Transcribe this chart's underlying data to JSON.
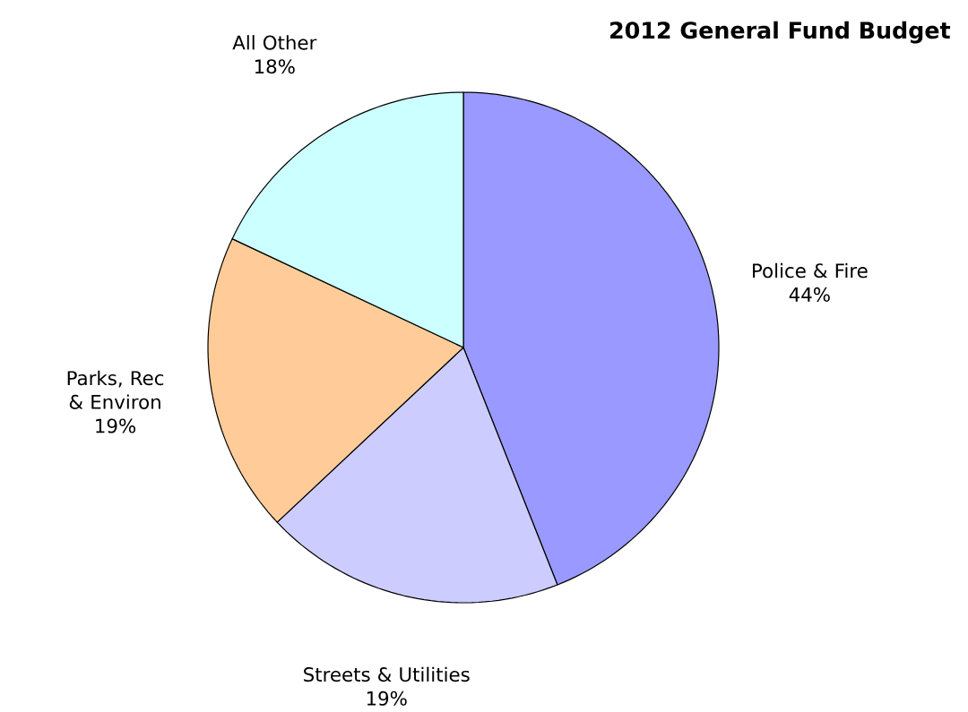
{
  "chart_data": {
    "type": "pie",
    "title": "2012 General Fund Budget",
    "categories": [
      "Police & Fire",
      "Streets & Utilities",
      "Parks, Rec & Environ",
      "All Other"
    ],
    "values": [
      44,
      19,
      19,
      18
    ],
    "value_labels": [
      "44%",
      "19%",
      "19%",
      "18%"
    ],
    "colors": [
      "#9999ff",
      "#ccccff",
      "#ffcc99",
      "#ccffff"
    ]
  }
}
